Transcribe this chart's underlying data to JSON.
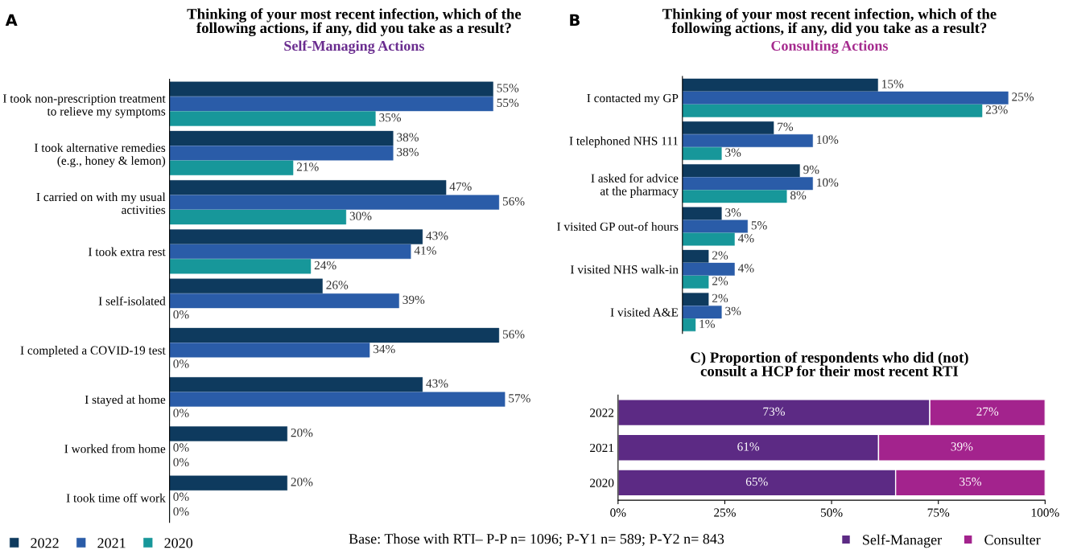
{
  "chart_data": [
    {
      "type": "bar",
      "orientation": "horizontal",
      "title": "Thinking of your most recent infection, which of the\nfollowing actions, if any, did you take as a result?",
      "subtitle": "Self-Managing Actions",
      "categories": [
        "I took non-prescription treatment\nto relieve my symptoms",
        "I took alternative remedies\n(e.g., honey & lemon)",
        "I carried on with my usual\nactivities",
        "I took extra rest",
        "I self-isolated",
        "I completed a COVID-19 test",
        "I stayed at home",
        "I worked from home",
        "I took time off work"
      ],
      "series": [
        {
          "name": "2022",
          "color": "#0e3a5e",
          "values": [
            55,
            38,
            47,
            43,
            26,
            56,
            43,
            20,
            20
          ],
          "value_labels": [
            "55%",
            "38%",
            "47%",
            "43%",
            "26%",
            "56%",
            "43%",
            "20%",
            "20%"
          ]
        },
        {
          "name": "2021",
          "color": "#2a5ca8",
          "values": [
            55,
            38,
            56,
            41,
            39,
            34,
            57,
            0,
            0
          ],
          "value_labels": [
            "55%",
            "38%",
            "56%",
            "41%",
            "39%",
            "34%",
            "57%",
            "0%",
            "0%"
          ]
        },
        {
          "name": "2020",
          "color": "#17979a",
          "values": [
            35,
            21,
            30,
            24,
            0,
            0,
            0,
            0,
            0
          ],
          "value_labels": [
            "35%",
            "21%",
            "30%",
            "24%",
            "0%",
            "0%",
            "0%",
            "0%",
            "0%"
          ]
        }
      ],
      "tick_labels": "y",
      "legend": "bottom",
      "annotations": [
        "A",
        "Base: Those with RTI– P-P n= 1096; P-Y1 n= 589; P-Y2 n= 843"
      ]
    },
    {
      "type": "bar",
      "orientation": "horizontal",
      "title": "Thinking of your most recent infection, which of the\nfollowing actions, if any, did you take as a result?",
      "subtitle": "Consulting Actions",
      "categories": [
        "I contacted my GP",
        "I telephoned NHS 111",
        "I asked for advice\nat the pharmacy",
        "I visited GP out-of hours",
        "I visited NHS walk-in",
        "I visited A&E"
      ],
      "series": [
        {
          "color": "#0e3a5e",
          "values": [
            15,
            7,
            9,
            3,
            2,
            2
          ],
          "value_labels": [
            "15%",
            "7%",
            "9%",
            "3%",
            "2%",
            "2%"
          ]
        },
        {
          "color": "#2a5ca8",
          "values": [
            25,
            10,
            10,
            5,
            4,
            3
          ],
          "value_labels": [
            "25%",
            "10%",
            "10%",
            "5%",
            "4%",
            "3%"
          ]
        },
        {
          "color": "#17979a",
          "values": [
            23,
            3,
            8,
            4,
            2,
            1
          ],
          "value_labels": [
            "23%",
            "3%",
            "8%",
            "4%",
            "2%",
            "1%"
          ]
        }
      ],
      "tick_labels": "y",
      "annotations": [
        "B"
      ]
    },
    {
      "type": "bar",
      "orientation": "horizontal",
      "stacked": true,
      "title": "C) Proportion of respondents who did (not)\nconsult a HCP for their most recent RTI",
      "categories": [
        "2022",
        "2021",
        "2020"
      ],
      "series": [
        {
          "name": "Self-Manager",
          "color": "#5c2a84",
          "values": [
            73,
            61,
            65
          ],
          "value_labels": [
            "73%",
            "61%",
            "65%"
          ]
        },
        {
          "name": "Consulter",
          "color": "#a3238d",
          "values": [
            27,
            39,
            35
          ],
          "value_labels": [
            "27%",
            "39%",
            "35%"
          ]
        }
      ],
      "xlim": [
        0,
        100
      ],
      "xticks": [
        {
          "value": 0,
          "label": "0%"
        },
        {
          "value": 25,
          "label": "25%"
        },
        {
          "value": 50,
          "label": "50%"
        },
        {
          "value": 75,
          "label": "75%"
        },
        {
          "value": 100,
          "label": "100%"
        }
      ],
      "legend": "bottom right"
    }
  ]
}
